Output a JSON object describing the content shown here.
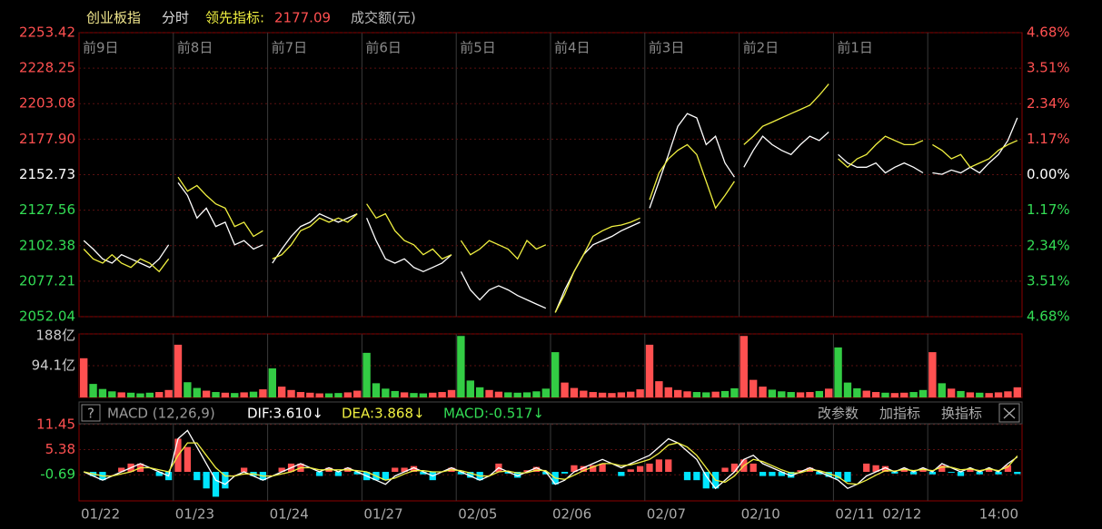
{
  "header": {
    "mode": "分时",
    "indicator_value": "2177.09"
  },
  "chart_data": [
    {
      "type": "line",
      "day_labels": [
        "前9日",
        "前8日",
        "前7日",
        "前6日",
        "前5日",
        "前4日",
        "前3日",
        "前2日",
        "前1日"
      ],
      "series": [
        {
          "name": "创业板指",
          "color": "#ffffff",
          "values": [
            2106,
            2100,
            2093,
            2090,
            2096,
            2093,
            2090,
            2087,
            2093,
            2103,
            null,
            2147,
            2138,
            2122,
            2129,
            2116,
            2119,
            2103,
            2106,
            2100,
            2103,
            null,
            2090,
            2100,
            2109,
            2116,
            2119,
            2125,
            2122,
            2119,
            2122,
            2125,
            null,
            2122,
            2106,
            2093,
            2090,
            2093,
            2087,
            2084,
            2087,
            2090,
            2096,
            null,
            2084,
            2071,
            2064,
            2071,
            2074,
            2071,
            2067,
            2064,
            2061,
            2058,
            null,
            2055,
            2071,
            2084,
            2096,
            2103,
            2106,
            2109,
            2113,
            2116,
            2119,
            null,
            2129,
            2148,
            2167,
            2187,
            2196,
            2193,
            2174,
            2180,
            2161,
            2151,
            null,
            2158,
            2170,
            2180,
            2174,
            2170,
            2167,
            2174,
            2180,
            2177,
            2183,
            null,
            2167,
            2161,
            2158,
            2158,
            2161,
            2154,
            2158,
            2161,
            2158,
            2154,
            null,
            2154,
            2153,
            2156,
            2154,
            2158,
            2154,
            2161,
            2167,
            2177,
            2193
          ]
        },
        {
          "name": "领先指标:",
          "color": "#f0f040",
          "values": [
            2100,
            2093,
            2090,
            2096,
            2090,
            2087,
            2093,
            2090,
            2084,
            2093,
            null,
            2151,
            2141,
            2145,
            2138,
            2132,
            2129,
            2116,
            2119,
            2109,
            2113,
            null,
            2093,
            2096,
            2103,
            2113,
            2116,
            2122,
            2119,
            2122,
            2119,
            2125,
            null,
            2132,
            2122,
            2125,
            2113,
            2106,
            2103,
            2096,
            2100,
            2093,
            2096,
            null,
            2106,
            2096,
            2100,
            2106,
            2103,
            2100,
            2093,
            2106,
            2100,
            2103,
            null,
            2055,
            2068,
            2084,
            2096,
            2109,
            2113,
            2116,
            2117,
            2119,
            2122,
            null,
            2135,
            2154,
            2164,
            2170,
            2174,
            2167,
            2148,
            2129,
            2138,
            2148,
            null,
            2174,
            2180,
            2187,
            2190,
            2193,
            2196,
            2199,
            2202,
            2209,
            2217,
            null,
            2164,
            2158,
            2164,
            2167,
            2174,
            2180,
            2177,
            2174,
            2174,
            2177,
            null,
            2174,
            2170,
            2164,
            2167,
            2158,
            2161,
            2164,
            2170,
            2174,
            2177
          ]
        }
      ],
      "ylim": [
        2052.04,
        2253.42
      ],
      "yticks": [
        2253.42,
        2228.25,
        2203.08,
        {
          "value": 2177.9,
          "label": "2177.90"
        },
        2152.73,
        2127.56,
        2102.38,
        2077.21,
        2052.04
      ],
      "y2lim": [
        -4.68,
        4.68
      ],
      "y2ticks": [
        {
          "value": 4.68,
          "label": "4.68%"
        },
        {
          "value": 3.51,
          "label": "3.51%"
        },
        {
          "value": 2.34,
          "label": "2.34%"
        },
        {
          "value": 1.17,
          "label": "1.17%"
        },
        {
          "value": 0,
          "label": "0.00%"
        },
        {
          "value": -1.17,
          "label": "1.17%"
        },
        {
          "value": -2.34,
          "label": "2.34%"
        },
        {
          "value": -3.51,
          "label": "3.51%"
        },
        {
          "value": -4.68,
          "label": "4.68%"
        }
      ],
      "grid": true
    },
    {
      "type": "bar",
      "title": "成交额(元)",
      "color": "#ff5050",
      "negative_color": "#33cc44",
      "values": [
        116,
        40,
        25,
        18,
        15,
        14,
        12,
        14,
        16,
        22,
        156,
        45,
        28,
        20,
        16,
        14,
        13,
        15,
        17,
        24,
        86,
        32,
        22,
        16,
        14,
        12,
        12,
        13,
        15,
        20,
        132,
        42,
        26,
        19,
        15,
        13,
        12,
        14,
        16,
        22,
        182,
        50,
        30,
        22,
        17,
        15,
        14,
        15,
        18,
        26,
        134,
        44,
        28,
        20,
        16,
        14,
        13,
        15,
        17,
        24,
        156,
        48,
        30,
        22,
        18,
        16,
        15,
        17,
        19,
        27,
        182,
        52,
        32,
        23,
        18,
        16,
        15,
        16,
        19,
        26,
        148,
        44,
        27,
        20,
        16,
        14,
        13,
        14,
        16,
        22,
        134,
        42,
        26,
        19,
        15,
        14,
        13,
        15,
        18,
        30
      ],
      "ylim": [
        0,
        188
      ],
      "yticks": [
        {
          "value": 188,
          "label": "188亿"
        },
        {
          "value": 94.1,
          "label": "94.1亿"
        }
      ]
    },
    {
      "type": "macd",
      "help": "?",
      "title": "MACD (12,26,9)",
      "status": [
        "DIF:3.610↓",
        "DEA:3.868↓",
        "MACD:-0.517↓"
      ],
      "buttons": [
        "改参数",
        "加指标",
        "换指标"
      ],
      "day_labels": [
        "01/22",
        "01/23",
        "01/24",
        "01/27",
        "02/05",
        "02/06",
        "02/07",
        "02/10",
        "02/11",
        "02/12"
      ],
      "time_label": "14:00",
      "series": [
        {
          "color": "#ffffff",
          "values": [
            0,
            -1,
            -2,
            -1,
            0,
            1,
            2,
            1,
            0,
            -1,
            8,
            10,
            6,
            2,
            -2,
            -3,
            -1,
            0,
            -1,
            -2,
            -1,
            0,
            1,
            2,
            1,
            0,
            1,
            0,
            1,
            0,
            -1,
            -2,
            -3,
            -1,
            0,
            1,
            0,
            -1,
            0,
            1,
            0,
            -1,
            -2,
            -1,
            1,
            0,
            -1,
            0,
            1,
            0,
            -3,
            -2,
            0,
            1,
            2,
            3,
            2,
            1,
            2,
            3,
            4,
            6,
            8,
            7,
            5,
            3,
            -1,
            -4,
            -2,
            0,
            3,
            4,
            2,
            1,
            0,
            -1,
            0,
            1,
            0,
            -1,
            -2,
            -4,
            -3,
            -1,
            0,
            1,
            0,
            1,
            0,
            1,
            0,
            2,
            1,
            0,
            1,
            0,
            1,
            0,
            2,
            3.61
          ]
        },
        {
          "color": "#f0f040",
          "values": [
            0,
            -0.5,
            -1,
            -1,
            -0.5,
            0,
            1,
            1,
            0.5,
            0,
            4,
            7,
            7,
            4,
            1,
            -1,
            -1,
            -0.5,
            -0.5,
            -1,
            -1,
            -0.5,
            0,
            1,
            1,
            0.5,
            0.5,
            0.5,
            0.5,
            0.3,
            0,
            -1,
            -2,
            -1.5,
            -0.5,
            0.3,
            0.3,
            0,
            0,
            0.5,
            0.3,
            -0.3,
            -1,
            -1,
            0,
            0.2,
            -0.3,
            -0.2,
            0.4,
            0.3,
            -1.5,
            -1.8,
            -0.8,
            0.3,
            1.2,
            2,
            2,
            1.5,
            1.7,
            2.3,
            3,
            4.5,
            6.5,
            7,
            6,
            4,
            1,
            -2,
            -2.5,
            -1,
            1.5,
            3,
            2.5,
            1.5,
            0.5,
            -0.3,
            -0.2,
            0.5,
            0.3,
            -0.4,
            -1.2,
            -2.8,
            -3,
            -2,
            -0.8,
            0.3,
            0.2,
            0.6,
            0.3,
            0.6,
            0.3,
            1.2,
            1.1,
            0.5,
            0.7,
            0.3,
            0.7,
            0.3,
            1.2,
            3.868
          ]
        },
        {
          "type": "bar",
          "color": "#ff5050",
          "negative_color": "#00e5ff",
          "values": [
            0,
            -1,
            -2,
            0,
            1,
            2,
            2,
            0,
            -1,
            -2,
            8,
            6,
            -2,
            -4,
            -6,
            -4,
            0,
            1,
            -1,
            -2,
            0,
            1,
            2,
            2,
            0,
            -1,
            1,
            -1,
            1,
            -0.6,
            -2,
            -2,
            -2,
            1,
            1,
            1.4,
            -0.6,
            -2,
            0,
            1,
            -0.6,
            -1.4,
            -2,
            0,
            2,
            -0.4,
            -1.4,
            0.4,
            1.2,
            -0.6,
            -3,
            -0.4,
            1.6,
            1.4,
            1.6,
            2,
            0,
            -1,
            0.6,
            1.4,
            2,
            3,
            3,
            0,
            -2,
            -2,
            -4,
            -4,
            1,
            2,
            3,
            2,
            -1,
            -1,
            -1,
            -1.4,
            0.4,
            1,
            -0.6,
            -1.2,
            -1.6,
            -2.4,
            0,
            2,
            1.6,
            1.4,
            -0.4,
            0.8,
            -0.6,
            0.8,
            -0.6,
            1.6,
            -0.2,
            -1,
            0.6,
            -0.6,
            0.6,
            -0.6,
            1.6,
            -0.517
          ]
        }
      ],
      "ylim": [
        -7,
        16
      ],
      "yticks": [
        11.45,
        5.38,
        -0.69
      ]
    }
  ]
}
